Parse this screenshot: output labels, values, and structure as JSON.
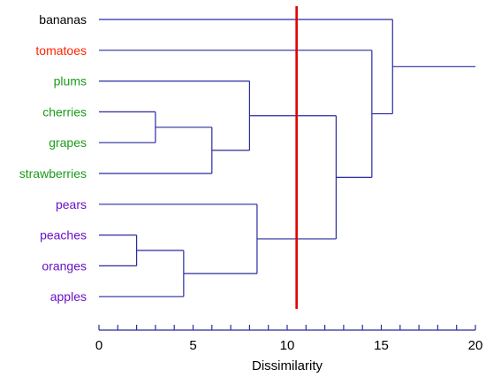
{
  "chart_data": {
    "type": "dendrogram",
    "xlabel": "Dissimilarity",
    "xlim": [
      0,
      20
    ],
    "ticks": [
      0,
      5,
      10,
      15,
      20
    ],
    "minor_tick_step": 1,
    "leaves": [
      {
        "name": "bananas",
        "color": "#000000"
      },
      {
        "name": "tomatoes",
        "color": "#ff2400"
      },
      {
        "name": "plums",
        "color": "#1a9b1a"
      },
      {
        "name": "cherries",
        "color": "#1a9b1a"
      },
      {
        "name": "grapes",
        "color": "#1a9b1a"
      },
      {
        "name": "strawberries",
        "color": "#1a9b1a"
      },
      {
        "name": "pears",
        "color": "#6a12c8"
      },
      {
        "name": "peaches",
        "color": "#6a12c8"
      },
      {
        "name": "oranges",
        "color": "#6a12c8"
      },
      {
        "name": "apples",
        "color": "#6a12c8"
      }
    ],
    "merges": [
      {
        "id": "m_cg",
        "children": [
          "cherries",
          "grapes"
        ],
        "height": 3.0
      },
      {
        "id": "m_po",
        "children": [
          "peaches",
          "oranges"
        ],
        "height": 2.0
      },
      {
        "id": "m_poa",
        "children": [
          "m_po",
          "apples"
        ],
        "height": 4.5
      },
      {
        "id": "m_cgs",
        "children": [
          "m_cg",
          "strawberries"
        ],
        "height": 6.0
      },
      {
        "id": "m_pcgs",
        "children": [
          "plums",
          "m_cgs"
        ],
        "height": 8.0
      },
      {
        "id": "m_ppoa",
        "children": [
          "pears",
          "m_poa"
        ],
        "height": 8.4
      },
      {
        "id": "m_fruit",
        "children": [
          "m_pcgs",
          "m_ppoa"
        ],
        "height": 12.6
      },
      {
        "id": "m_tom",
        "children": [
          "tomatoes",
          "m_fruit"
        ],
        "height": 14.5
      },
      {
        "id": "m_all",
        "children": [
          "bananas",
          "m_tom"
        ],
        "height": 15.6
      }
    ],
    "root_extent": 20,
    "cut_line": {
      "value": 10.5,
      "color": "#e00000"
    },
    "line_color": "#2b2b9e"
  }
}
